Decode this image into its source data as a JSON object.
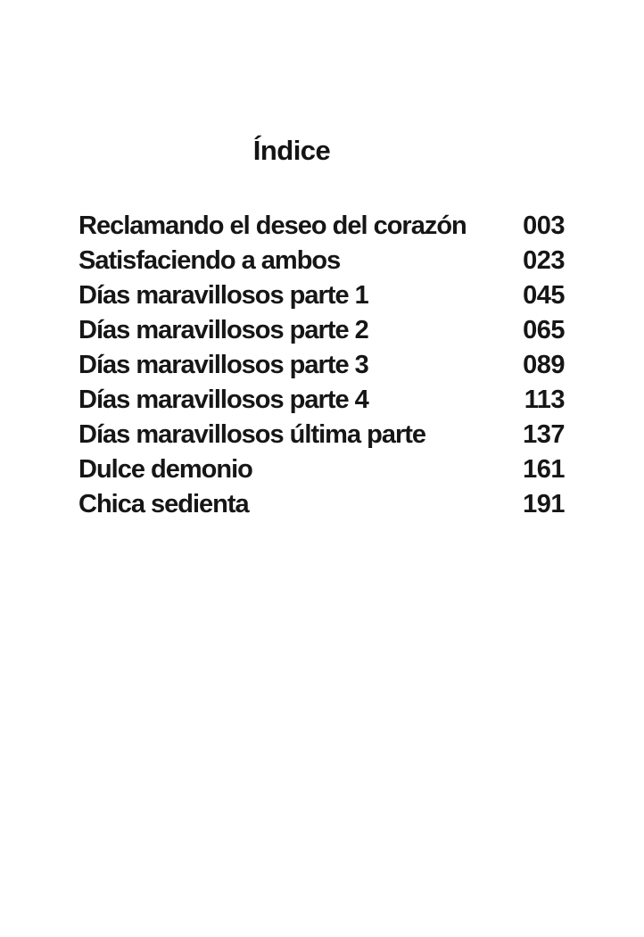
{
  "document": {
    "title": "Índice"
  },
  "toc": {
    "entries": [
      {
        "label": "Reclamando el deseo del corazón",
        "page": "003"
      },
      {
        "label": "Satisfaciendo a ambos",
        "page": "023"
      },
      {
        "label": "Días maravillosos parte 1",
        "page": "045"
      },
      {
        "label": "Días maravillosos parte 2",
        "page": "065"
      },
      {
        "label": "Días maravillosos parte 3",
        "page": "089"
      },
      {
        "label": "Días maravillosos parte 4",
        "page": "113"
      },
      {
        "label": "Días maravillosos última parte",
        "page": "137"
      },
      {
        "label": "Dulce demonio",
        "page": "161"
      },
      {
        "label": "Chica sedienta",
        "page": "191"
      }
    ]
  }
}
